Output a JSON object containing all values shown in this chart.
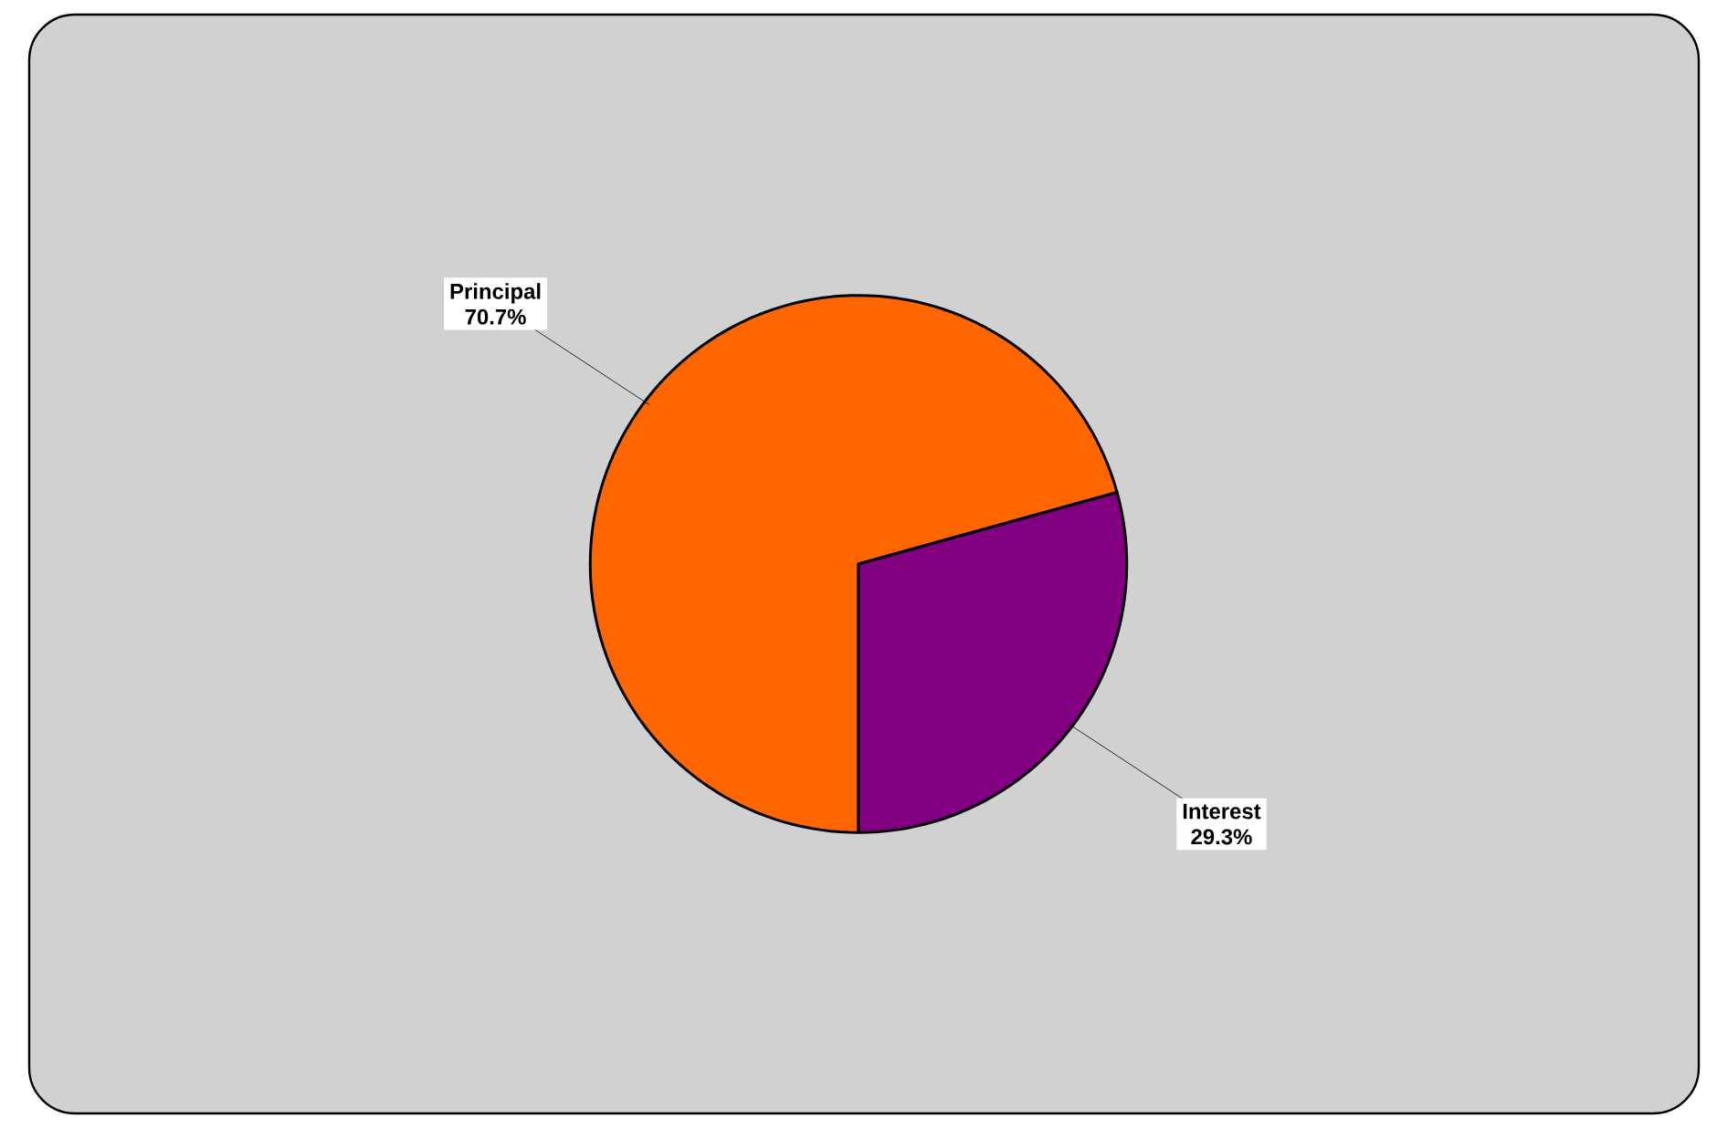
{
  "chart_data": {
    "type": "pie",
    "categories": [
      "Principal",
      "Interest"
    ],
    "values": [
      70.7,
      29.3
    ],
    "colors": [
      "#ff6600",
      "#800080"
    ],
    "value_labels": [
      "70.7%",
      "29.3%"
    ]
  }
}
